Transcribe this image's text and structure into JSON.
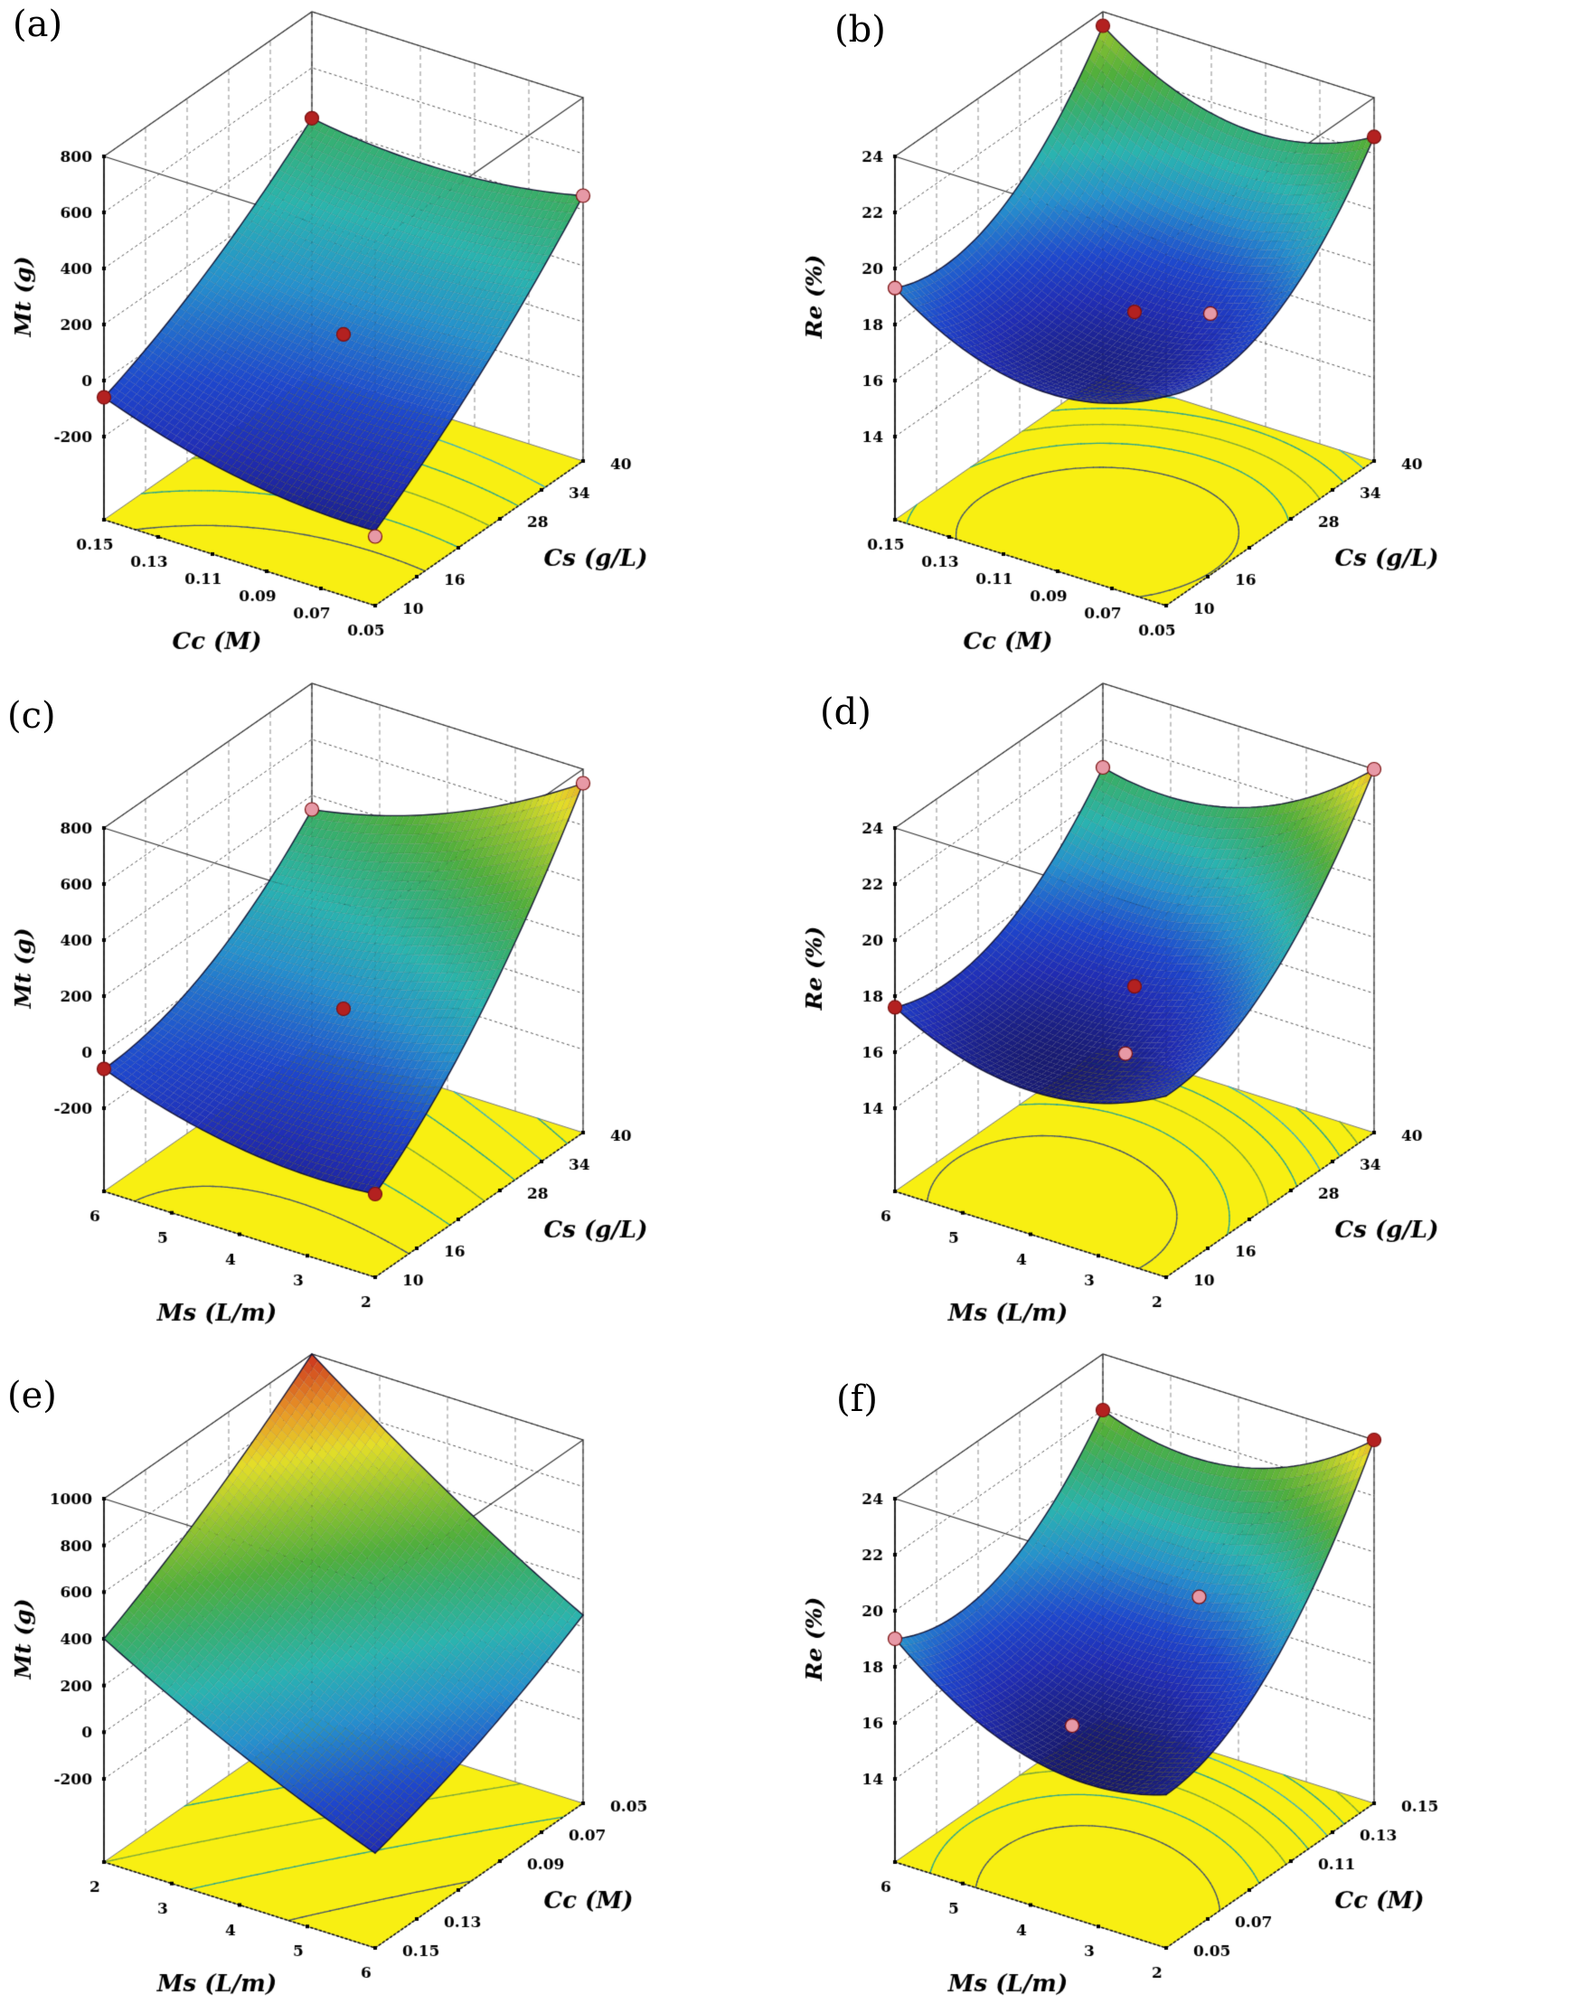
{
  "figure": {
    "background": "#ffffff",
    "grid": {
      "cols": 2,
      "rows": 3
    }
  },
  "colors": {
    "floor_yellow": "#f8ef12",
    "point_darkred": "#b32120",
    "point_pink": "#e799a6",
    "contour_palette": [
      "#44556a",
      "#2aa58d",
      "#7aa83a",
      "#2aa58d",
      "#38b0c0",
      "#2aa58d",
      "#7aa83a"
    ],
    "surface_low": "#181a70",
    "surface_high": "#c61c1c"
  },
  "chart_data": [
    {
      "panel_label": "(a)",
      "type": "surface3d",
      "z_axis": {
        "label": "Mt (g)",
        "ticks": [
          {
            "value": 800,
            "label": "800"
          },
          {
            "value": 600,
            "label": "600"
          },
          {
            "value": 400,
            "label": "400"
          },
          {
            "value": 200,
            "label": "200"
          },
          {
            "value": 0,
            "label": "0"
          },
          {
            "value": -200,
            "label": "-200"
          }
        ]
      },
      "x_axis": {
        "label": "Cc (M)",
        "ticks": [
          {
            "value": 0.15,
            "label": "0.15"
          },
          {
            "value": 0.13,
            "label": "0.13"
          },
          {
            "value": 0.11,
            "label": "0.11"
          },
          {
            "value": 0.09,
            "label": "0.09"
          },
          {
            "value": 0.07,
            "label": "0.07"
          },
          {
            "value": 0.05,
            "label": "0.05"
          }
        ]
      },
      "y_axis": {
        "label": "Cs (g/L)",
        "ticks": [
          {
            "value": 10,
            "label": "10"
          },
          {
            "value": 16,
            "label": "16"
          },
          {
            "value": 22,
            "label": ""
          },
          {
            "value": 28,
            "label": "28"
          },
          {
            "value": 34,
            "label": "34"
          },
          {
            "value": 40,
            "label": "40"
          }
        ]
      },
      "surface": {
        "z00": -60,
        "z10": -230,
        "z01": 420,
        "z11": 450,
        "sag_u": -50,
        "sag_v": -45,
        "color_domain": [
          -300,
          1100
        ]
      },
      "contour_levels": [
        -100,
        0,
        100,
        200,
        300
      ],
      "points": [
        {
          "u": 0,
          "v": 0,
          "z": -60,
          "color": "darkred"
        },
        {
          "u": 0,
          "v": 1,
          "z": 420,
          "color": "darkred"
        },
        {
          "u": 1,
          "v": 1,
          "z": 450,
          "color": "pink"
        },
        {
          "u": 0.5,
          "v": 0.5,
          "z": 60,
          "color": "darkred"
        },
        {
          "u": 1,
          "v": 0,
          "z": -250,
          "color": "pink"
        }
      ]
    },
    {
      "panel_label": "(b)",
      "type": "surface3d",
      "z_axis": {
        "label": "Re (%)",
        "ticks": [
          {
            "value": 24,
            "label": "24"
          },
          {
            "value": 22,
            "label": "22"
          },
          {
            "value": 20,
            "label": "20"
          },
          {
            "value": 18,
            "label": "18"
          },
          {
            "value": 16,
            "label": "16"
          },
          {
            "value": 14,
            "label": "14"
          }
        ]
      },
      "x_axis": {
        "label": "Cc (M)",
        "ticks": [
          {
            "value": 0.15,
            "label": "0.15"
          },
          {
            "value": 0.13,
            "label": "0.13"
          },
          {
            "value": 0.11,
            "label": "0.11"
          },
          {
            "value": 0.09,
            "label": "0.09"
          },
          {
            "value": 0.07,
            "label": "0.07"
          },
          {
            "value": 0.05,
            "label": "0.05"
          }
        ]
      },
      "y_axis": {
        "label": "Cs (g/L)",
        "ticks": [
          {
            "value": 10,
            "label": "10"
          },
          {
            "value": 16,
            "label": "16"
          },
          {
            "value": 22,
            "label": ""
          },
          {
            "value": 28,
            "label": "28"
          },
          {
            "value": 34,
            "label": "34"
          },
          {
            "value": 40,
            "label": "40"
          }
        ]
      },
      "surface": {
        "z00": 19.3,
        "z10": 18.5,
        "z01": 23.5,
        "z11": 22.6,
        "sag_u": -1.6,
        "sag_v": -1.975,
        "color_domain": [
          16.5,
          26.5
        ]
      },
      "contour_levels": [
        18,
        19,
        20,
        21,
        22
      ],
      "points": [
        {
          "u": 0,
          "v": 0,
          "z": 19.3,
          "color": "pink"
        },
        {
          "u": 0,
          "v": 1,
          "z": 23.5,
          "color": "darkred"
        },
        {
          "u": 1,
          "v": 1,
          "z": 22.6,
          "color": "darkred"
        },
        {
          "u": 0.5,
          "v": 0.5,
          "z": 17.4,
          "color": "darkred"
        },
        {
          "u": 0.78,
          "v": 0.5,
          "z": 18.2,
          "color": "pink"
        }
      ]
    },
    {
      "panel_label": "(c)",
      "type": "surface3d",
      "z_axis": {
        "label": "Mt (g)",
        "ticks": [
          {
            "value": 800,
            "label": "800"
          },
          {
            "value": 600,
            "label": "600"
          },
          {
            "value": 400,
            "label": "400"
          },
          {
            "value": 200,
            "label": "200"
          },
          {
            "value": 0,
            "label": "0"
          },
          {
            "value": -200,
            "label": "-200"
          }
        ]
      },
      "x_axis": {
        "label": "Ms (L/m)",
        "ticks": [
          {
            "value": 6,
            "label": "6"
          },
          {
            "value": 5,
            "label": "5"
          },
          {
            "value": 4,
            "label": "4"
          },
          {
            "value": 3,
            "label": "3"
          },
          {
            "value": 2,
            "label": "2"
          }
        ]
      },
      "y_axis": {
        "label": "Cs (g/L)",
        "ticks": [
          {
            "value": 10,
            "label": "10"
          },
          {
            "value": 16,
            "label": "16"
          },
          {
            "value": 22,
            "label": ""
          },
          {
            "value": 28,
            "label": "28"
          },
          {
            "value": 34,
            "label": "34"
          },
          {
            "value": 40,
            "label": "40"
          }
        ]
      },
      "surface": {
        "z00": -60,
        "z10": -200,
        "z01": 350,
        "z11": 750,
        "sag_u": -60,
        "sag_v": -100,
        "color_domain": [
          -300,
          950
        ]
      },
      "contour_levels": [
        -100,
        50,
        200,
        350,
        500,
        650
      ],
      "points": [
        {
          "u": 0,
          "v": 0,
          "z": -60,
          "color": "darkred"
        },
        {
          "u": 0,
          "v": 1,
          "z": 350,
          "color": "pink"
        },
        {
          "u": 1,
          "v": 1,
          "z": 750,
          "color": "pink"
        },
        {
          "u": 0.5,
          "v": 0.5,
          "z": 50,
          "color": "darkred"
        },
        {
          "u": 1,
          "v": 0,
          "z": -200,
          "color": "darkred"
        }
      ]
    },
    {
      "panel_label": "(d)",
      "type": "surface3d",
      "z_axis": {
        "label": "Re (%)",
        "ticks": [
          {
            "value": 24,
            "label": "24"
          },
          {
            "value": 22,
            "label": "22"
          },
          {
            "value": 20,
            "label": "20"
          },
          {
            "value": 18,
            "label": "18"
          },
          {
            "value": 16,
            "label": "16"
          },
          {
            "value": 14,
            "label": "14"
          }
        ]
      },
      "x_axis": {
        "label": "Ms (L/m)",
        "ticks": [
          {
            "value": 6,
            "label": "6"
          },
          {
            "value": 5,
            "label": "5"
          },
          {
            "value": 4,
            "label": "4"
          },
          {
            "value": 3,
            "label": "3"
          },
          {
            "value": 2,
            "label": "2"
          }
        ]
      },
      "y_axis": {
        "label": "Cs (g/L)",
        "ticks": [
          {
            "value": 10,
            "label": "10"
          },
          {
            "value": 16,
            "label": "16"
          },
          {
            "value": 22,
            "label": ""
          },
          {
            "value": 28,
            "label": "28"
          },
          {
            "value": 34,
            "label": "34"
          },
          {
            "value": 40,
            "label": "40"
          }
        ]
      },
      "surface": {
        "z00": 17.6,
        "z10": 17.5,
        "z01": 21.0,
        "z11": 24.0,
        "sag_u": -1.4,
        "sag_v": -1.7,
        "color_domain": [
          16,
          25.5
        ]
      },
      "contour_levels": [
        17,
        18,
        19,
        20,
        21,
        22,
        23
      ],
      "points": [
        {
          "u": 0,
          "v": 0,
          "z": 17.6,
          "color": "darkred"
        },
        {
          "u": 0,
          "v": 1,
          "z": 21.0,
          "color": "pink"
        },
        {
          "u": 1,
          "v": 1,
          "z": 24.0,
          "color": "pink"
        },
        {
          "u": 0.5,
          "v": 0.5,
          "z": 17.3,
          "color": "darkred"
        },
        {
          "u": 0.62,
          "v": 0.3,
          "z": 16.3,
          "color": "pink"
        }
      ]
    },
    {
      "panel_label": "(e)",
      "type": "surface3d",
      "z_axis": {
        "label": "Mt (g)",
        "ticks": [
          {
            "value": 1000,
            "label": "1000"
          },
          {
            "value": 800,
            "label": "800"
          },
          {
            "value": 600,
            "label": "600"
          },
          {
            "value": 400,
            "label": "400"
          },
          {
            "value": 200,
            "label": "200"
          },
          {
            "value": 0,
            "label": "0"
          },
          {
            "value": -200,
            "label": "-200"
          }
        ]
      },
      "x_axis": {
        "label": "Ms (L/m)",
        "ticks": [
          {
            "value": 2,
            "label": "2"
          },
          {
            "value": 3,
            "label": "3"
          },
          {
            "value": 4,
            "label": "4"
          },
          {
            "value": 5,
            "label": "5"
          },
          {
            "value": 6,
            "label": "6"
          }
        ]
      },
      "y_axis": {
        "label": "Cc (M)",
        "ticks": [
          {
            "value": 0.15,
            "label": "0.15"
          },
          {
            "value": 0.13,
            "label": "0.13"
          },
          {
            "value": 0.11,
            "label": ""
          },
          {
            "value": 0.09,
            "label": "0.09"
          },
          {
            "value": 0.07,
            "label": "0.07"
          },
          {
            "value": 0.05,
            "label": "0.05"
          }
        ]
      },
      "surface": {
        "z00": 400,
        "z10": -150,
        "z01": 1000,
        "z11": 250,
        "sag_u": -30,
        "sag_v": -35,
        "color_domain": [
          -280,
          1030
        ]
      },
      "contour_levels": [
        0,
        200,
        400,
        600,
        800
      ],
      "points": []
    },
    {
      "panel_label": "(f)",
      "type": "surface3d",
      "z_axis": {
        "label": "Re (%)",
        "ticks": [
          {
            "value": 24,
            "label": "24"
          },
          {
            "value": 22,
            "label": "22"
          },
          {
            "value": 20,
            "label": "20"
          },
          {
            "value": 18,
            "label": "18"
          },
          {
            "value": 16,
            "label": "16"
          },
          {
            "value": 14,
            "label": "14"
          }
        ]
      },
      "x_axis": {
        "label": "Ms (L/m)",
        "ticks": [
          {
            "value": 6,
            "label": "6"
          },
          {
            "value": 5,
            "label": "5"
          },
          {
            "value": 4,
            "label": "4"
          },
          {
            "value": 3,
            "label": "3"
          },
          {
            "value": 2,
            "label": "2"
          }
        ]
      },
      "y_axis": {
        "label": "Cc (M)",
        "ticks": [
          {
            "value": 0.05,
            "label": "0.05"
          },
          {
            "value": 0.07,
            "label": "0.07"
          },
          {
            "value": 0.09,
            "label": ""
          },
          {
            "value": 0.11,
            "label": "0.11"
          },
          {
            "value": 0.13,
            "label": "0.13"
          },
          {
            "value": 0.15,
            "label": "0.15"
          }
        ]
      },
      "surface": {
        "z00": 19.0,
        "z10": 16.5,
        "z01": 22.0,
        "z11": 24.0,
        "sag_u": -1.5,
        "sag_v": -1.875,
        "color_domain": [
          16,
          25.5
        ]
      },
      "contour_levels": [
        17,
        18,
        19,
        20,
        21,
        22,
        23
      ],
      "points": [
        {
          "u": 0,
          "v": 0,
          "z": 19.0,
          "color": "pink"
        },
        {
          "u": 0,
          "v": 1,
          "z": 22.0,
          "color": "darkred"
        },
        {
          "u": 1,
          "v": 1,
          "z": 24.0,
          "color": "darkred"
        },
        {
          "u": 0.7,
          "v": 0.55,
          "z": 19.8,
          "color": "pink"
        },
        {
          "u": 0.5,
          "v": 0.2,
          "z": 16.4,
          "color": "pink"
        }
      ]
    }
  ]
}
